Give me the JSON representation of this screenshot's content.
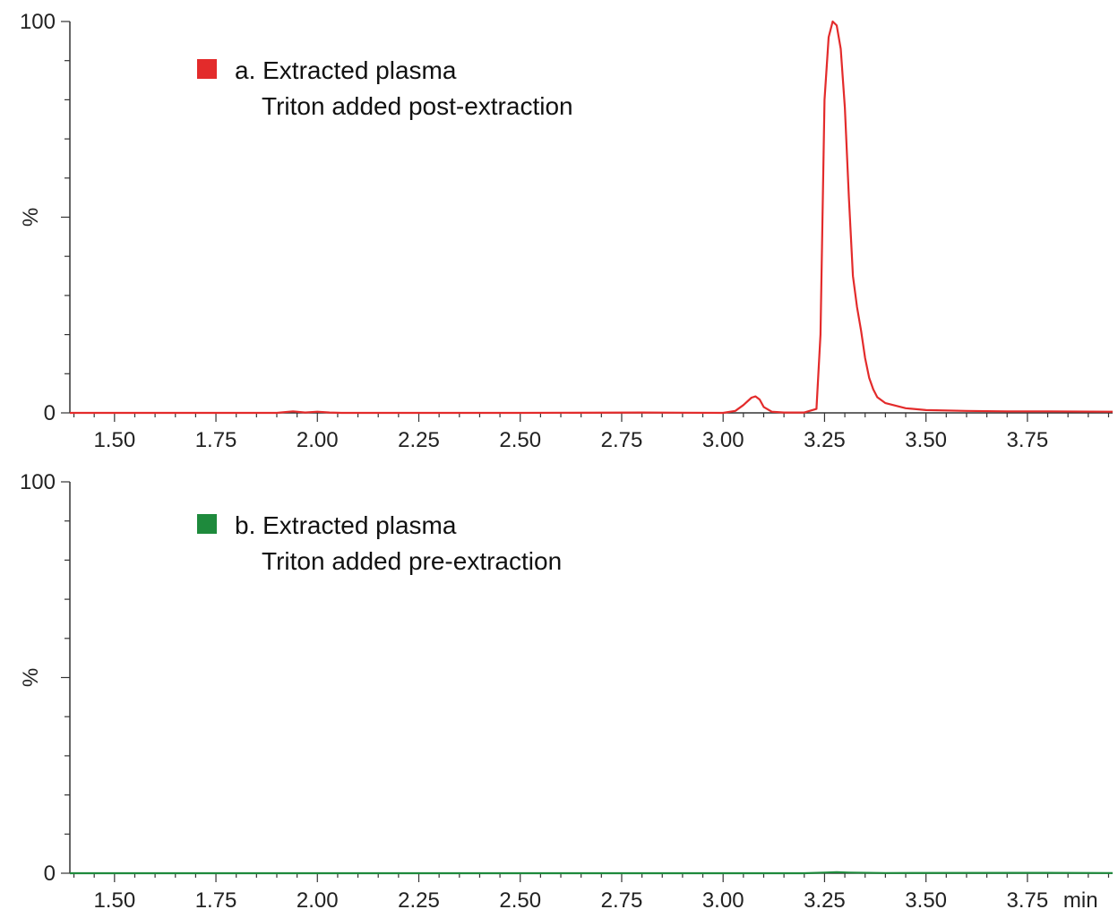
{
  "chart_data": [
    {
      "type": "line",
      "panel": "a",
      "x_range": [
        1.39,
        3.96
      ],
      "ylim": [
        0,
        100
      ],
      "ylabel": "%",
      "y_ticks": [
        {
          "value": 0,
          "label": "0"
        },
        {
          "value": 100,
          "label": "100"
        }
      ],
      "x_ticks": [
        {
          "value": 1.5,
          "label": "1.50"
        },
        {
          "value": 1.75,
          "label": "1.75"
        },
        {
          "value": 2.0,
          "label": "2.00"
        },
        {
          "value": 2.25,
          "label": "2.25"
        },
        {
          "value": 2.5,
          "label": "2.50"
        },
        {
          "value": 2.75,
          "label": "2.75"
        },
        {
          "value": 3.0,
          "label": "3.00"
        },
        {
          "value": 3.25,
          "label": "3.25"
        },
        {
          "value": 3.5,
          "label": "3.50"
        },
        {
          "value": 3.75,
          "label": "3.75"
        }
      ],
      "x_unit_label": "",
      "legend": {
        "line1": "a. Extracted plasma",
        "line2": "Triton added post-extraction"
      },
      "series": [
        {
          "color": "#e32b2b",
          "x": [
            1.39,
            1.9,
            1.94,
            1.97,
            2.0,
            2.03,
            2.06,
            2.5,
            2.8,
            3.0,
            3.03,
            3.05,
            3.07,
            3.08,
            3.09,
            3.1,
            3.12,
            3.15,
            3.2,
            3.23,
            3.24,
            3.25,
            3.26,
            3.27,
            3.28,
            3.29,
            3.3,
            3.31,
            3.32,
            3.33,
            3.34,
            3.35,
            3.36,
            3.37,
            3.38,
            3.4,
            3.45,
            3.5,
            3.6,
            3.7,
            3.8,
            3.96
          ],
          "y": [
            0,
            0,
            0.4,
            0.1,
            0.3,
            0.1,
            0,
            0,
            0.1,
            0,
            0.5,
            2.0,
            3.9,
            4.2,
            3.4,
            1.5,
            0.3,
            0.1,
            0.1,
            1,
            20,
            80,
            96,
            100,
            99,
            93,
            78,
            55,
            35,
            27,
            21,
            14,
            9,
            6,
            4,
            2.5,
            1.2,
            0.7,
            0.5,
            0.4,
            0.4,
            0.3
          ]
        }
      ]
    },
    {
      "type": "line",
      "panel": "b",
      "x_range": [
        1.39,
        3.96
      ],
      "ylim": [
        0,
        100
      ],
      "ylabel": "%",
      "y_ticks": [
        {
          "value": 0,
          "label": "0"
        },
        {
          "value": 100,
          "label": "100"
        }
      ],
      "x_ticks": [
        {
          "value": 1.5,
          "label": "1.50"
        },
        {
          "value": 1.75,
          "label": "1.75"
        },
        {
          "value": 2.0,
          "label": "2.00"
        },
        {
          "value": 2.25,
          "label": "2.25"
        },
        {
          "value": 2.5,
          "label": "2.50"
        },
        {
          "value": 2.75,
          "label": "2.75"
        },
        {
          "value": 3.0,
          "label": "3.00"
        },
        {
          "value": 3.25,
          "label": "3.25"
        },
        {
          "value": 3.5,
          "label": "3.50"
        },
        {
          "value": 3.75,
          "label": "3.75"
        }
      ],
      "x_unit_label": "min",
      "legend": {
        "line1": "b. Extracted plasma",
        "line2": "Triton added pre-extraction"
      },
      "series": [
        {
          "color": "#1e8a3c",
          "x": [
            1.39,
            3.2,
            3.25,
            3.28,
            3.31,
            3.4,
            3.8,
            3.96
          ],
          "y": [
            0,
            0,
            0.15,
            0.25,
            0.15,
            0.05,
            0.1,
            0.05
          ]
        }
      ]
    }
  ]
}
